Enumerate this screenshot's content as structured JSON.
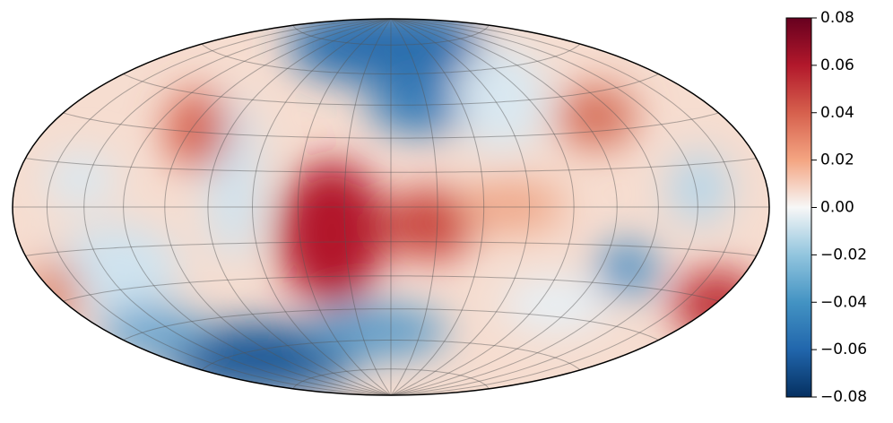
{
  "chart_data": {
    "type": "map",
    "clim": [
      -0.08,
      0.08
    ],
    "cticks": [
      {
        "value": -0.08,
        "label": "−0.08"
      },
      {
        "value": -0.06,
        "label": "−0.06"
      },
      {
        "value": -0.04,
        "label": "−0.04"
      },
      {
        "value": -0.02,
        "label": "−0.02"
      },
      {
        "value": 0,
        "label": "0.00"
      },
      0.02,
      0.04,
      0.06,
      0.08
    ]
  }
}
